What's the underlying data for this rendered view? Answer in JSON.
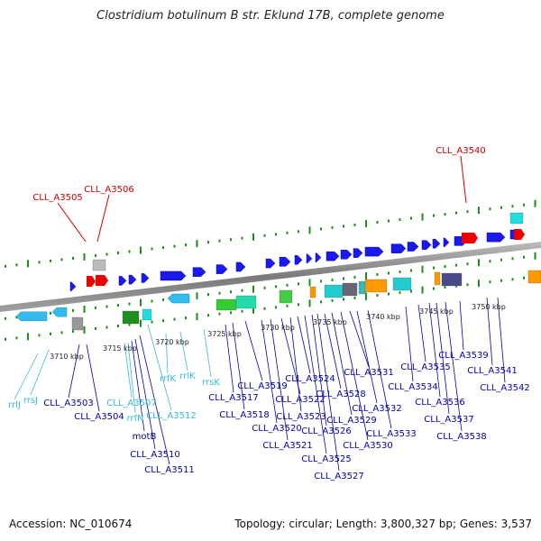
{
  "title": "Clostridium botulinum B str. Eklund 17B, complete genome",
  "footer": {
    "accession": "Accession: NC_010674",
    "summary": "Topology: circular; Length: 3,800,327 bp; Genes: 3,537"
  },
  "scale_ticks": [
    "3710 kbp",
    "3715 kbp",
    "3720 kbp",
    "3725 kbp",
    "3730 kbp",
    "3735 kbp",
    "3740 kbp",
    "3745 kbp",
    "3750 kbp"
  ],
  "colors": {
    "rna_label": "#33bbdd",
    "gene_label": "#0000aa",
    "highlight_label": "#cc0000",
    "backbone": "#888888",
    "tick_green": "#1a8f1a",
    "forward_gene": "#1a1aee",
    "rna_feature": "#33bbee"
  },
  "top_labels": [
    {
      "name": "CLL_A3505",
      "kind": "highlight"
    },
    {
      "name": "CLL_A3506",
      "kind": "highlight"
    },
    {
      "name": "CLL_A3540",
      "kind": "highlight"
    }
  ],
  "bottom_labels": [
    {
      "name": "rrlJ",
      "kind": "rna"
    },
    {
      "name": "rrsJ",
      "kind": "rna"
    },
    {
      "name": "CLL_A3503",
      "kind": "gene"
    },
    {
      "name": "CLL_A3504",
      "kind": "gene"
    },
    {
      "name": "CLL_A3507",
      "kind": "rna"
    },
    {
      "name": "rrfN",
      "kind": "rna"
    },
    {
      "name": "motB",
      "kind": "gene"
    },
    {
      "name": "CLL_A3510",
      "kind": "gene"
    },
    {
      "name": "CLL_A3511",
      "kind": "gene"
    },
    {
      "name": "rrfK",
      "kind": "rna"
    },
    {
      "name": "rrlK",
      "kind": "rna"
    },
    {
      "name": "CLL_A3512",
      "kind": "rna"
    },
    {
      "name": "rrsK",
      "kind": "rna"
    },
    {
      "name": "CLL_A3517",
      "kind": "gene"
    },
    {
      "name": "CLL_A3518",
      "kind": "gene"
    },
    {
      "name": "CLL_A3519",
      "kind": "gene"
    },
    {
      "name": "CLL_A3520",
      "kind": "gene"
    },
    {
      "name": "CLL_A3521",
      "kind": "gene"
    },
    {
      "name": "CLL_A3522",
      "kind": "gene"
    },
    {
      "name": "CLL_A3523",
      "kind": "gene"
    },
    {
      "name": "CLL_A3524",
      "kind": "gene"
    },
    {
      "name": "CLL_A3525",
      "kind": "gene"
    },
    {
      "name": "CLL_A3526",
      "kind": "gene"
    },
    {
      "name": "CLL_A3527",
      "kind": "gene"
    },
    {
      "name": "CLL_A3528",
      "kind": "gene"
    },
    {
      "name": "CLL_A3529",
      "kind": "gene"
    },
    {
      "name": "CLL_A3530",
      "kind": "gene"
    },
    {
      "name": "CLL_A3531",
      "kind": "gene"
    },
    {
      "name": "CLL_A3532",
      "kind": "gene"
    },
    {
      "name": "CLL_A3533",
      "kind": "gene"
    },
    {
      "name": "CLL_A3534",
      "kind": "gene"
    },
    {
      "name": "CLL_A3535",
      "kind": "gene"
    },
    {
      "name": "CLL_A3536",
      "kind": "gene"
    },
    {
      "name": "CLL_A3537",
      "kind": "gene"
    },
    {
      "name": "CLL_A3538",
      "kind": "gene"
    },
    {
      "name": "CLL_A3539",
      "kind": "gene"
    },
    {
      "name": "CLL_A3541",
      "kind": "gene"
    },
    {
      "name": "CLL_A3542",
      "kind": "gene"
    }
  ]
}
